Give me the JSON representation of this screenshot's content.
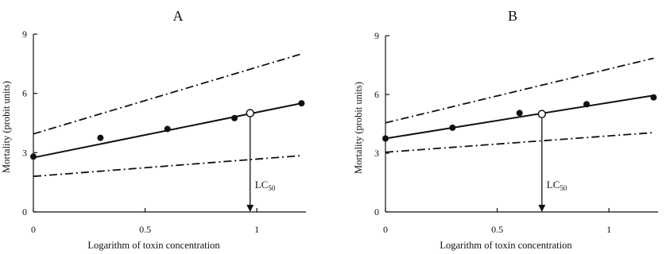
{
  "chart_data": [
    {
      "type": "line",
      "title": "A",
      "xlabel": "Logarithm of toxin concentration",
      "ylabel": "Mortality (probit units)",
      "xlim": [
        0,
        1.22
      ],
      "ylim": [
        0,
        9
      ],
      "xticks": [
        {
          "value": 0,
          "label": "0"
        },
        {
          "value": 0.5,
          "label": "0.5"
        },
        {
          "value": 1,
          "label": "1"
        }
      ],
      "yticks": [
        {
          "value": 0,
          "label": "0"
        },
        {
          "value": 3,
          "label": "3"
        },
        {
          "value": 6,
          "label": "6"
        },
        {
          "value": 9,
          "label": "9"
        }
      ],
      "points": [
        {
          "x": 0,
          "y": 2.8
        },
        {
          "x": 0.3,
          "y": 3.75
        },
        {
          "x": 0.6,
          "y": 4.2
        },
        {
          "x": 0.9,
          "y": 4.75
        },
        {
          "x": 1.2,
          "y": 5.5
        }
      ],
      "fit_line": [
        {
          "x": 0,
          "y": 2.75
        },
        {
          "x": 1.2,
          "y": 5.5
        }
      ],
      "upper_bound": [
        {
          "x": 0,
          "y": 3.95
        },
        {
          "x": 1.2,
          "y": 8.0
        }
      ],
      "lower_bound": [
        {
          "x": 0,
          "y": 1.8
        },
        {
          "x": 1.2,
          "y": 2.85
        }
      ],
      "lc50": {
        "x": 0.97,
        "y": 5.0,
        "label_main": "LC",
        "label_sub": "50"
      }
    },
    {
      "type": "line",
      "title": "B",
      "xlabel": "Logarithm of toxin concentration",
      "ylabel": "Mortality (probit units)",
      "xlim": [
        0,
        1.22
      ],
      "ylim": [
        0,
        9
      ],
      "xticks": [
        {
          "value": 0,
          "label": "0"
        },
        {
          "value": 0.5,
          "label": "0.5"
        },
        {
          "value": 1,
          "label": "1"
        }
      ],
      "yticks": [
        {
          "value": 0,
          "label": "0"
        },
        {
          "value": 3,
          "label": "3"
        },
        {
          "value": 6,
          "label": "6"
        },
        {
          "value": 9,
          "label": "9"
        }
      ],
      "points": [
        {
          "x": 0,
          "y": 3.75
        },
        {
          "x": 0.3,
          "y": 4.3
        },
        {
          "x": 0.6,
          "y": 5.05
        },
        {
          "x": 0.9,
          "y": 5.5
        },
        {
          "x": 1.2,
          "y": 5.85
        }
      ],
      "fit_line": [
        {
          "x": 0,
          "y": 3.75
        },
        {
          "x": 1.2,
          "y": 5.95
        }
      ],
      "upper_bound": [
        {
          "x": 0,
          "y": 4.55
        },
        {
          "x": 1.2,
          "y": 7.85
        }
      ],
      "lower_bound": [
        {
          "x": 0,
          "y": 3.05
        },
        {
          "x": 1.2,
          "y": 4.05
        }
      ],
      "lc50": {
        "x": 0.7,
        "y": 5.0,
        "label_main": "LC",
        "label_sub": "50"
      }
    }
  ]
}
